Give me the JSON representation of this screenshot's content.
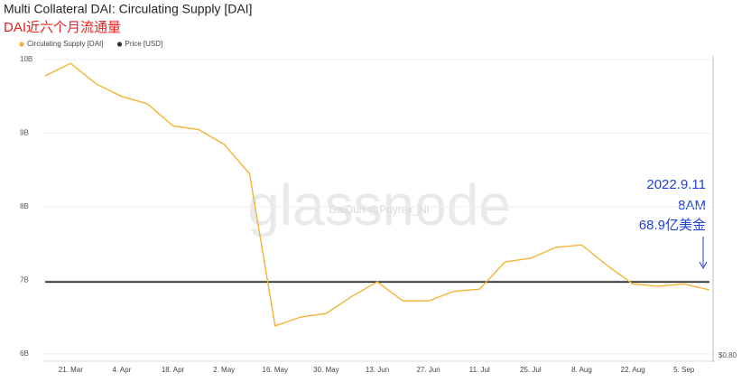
{
  "chart_data": {
    "type": "line",
    "title": "Multi Collateral DAI: Circulating Supply [DAI]",
    "subtitle": "DAI近六个月流通量",
    "categories": [
      null,
      "21. Mar",
      null,
      "4. Apr",
      null,
      "18. Apr",
      null,
      "2. May",
      null,
      "16. May",
      null,
      "30. May",
      null,
      "13. Jun",
      null,
      "27. Jun",
      null,
      "11. Jul",
      null,
      "25. Jul",
      null,
      "8. Aug",
      null,
      "22. Aug",
      null,
      "5. Sep",
      null
    ],
    "series": [
      {
        "name": "Circulating Supply [DAI]",
        "color": "#f5b335",
        "values": [
          9780000000,
          9950000000,
          9670000000,
          9500000000,
          9400000000,
          9100000000,
          9050000000,
          8850000000,
          8450000000,
          6380000000,
          6500000000,
          6550000000,
          6780000000,
          6980000000,
          6720000000,
          6720000000,
          6850000000,
          6880000000,
          7250000000,
          7300000000,
          7450000000,
          7480000000,
          7200000000,
          6950000000,
          6920000000,
          6950000000,
          6870000000
        ]
      },
      {
        "name": "Price [USD]",
        "color": "#333333",
        "axis": "y2",
        "values": [
          1.0,
          1.0,
          1.0,
          1.0,
          1.0,
          1.0,
          1.0,
          1.0,
          1.0,
          1.0,
          1.0,
          1.0,
          1.0,
          1.0,
          1.0,
          1.0,
          1.0,
          1.0,
          1.0,
          1.0,
          1.0,
          1.0,
          1.0,
          1.0,
          1.0,
          1.0,
          1.0
        ]
      }
    ],
    "ylim": [
      5900000000,
      10050000000
    ],
    "yticks": [
      {
        "value": 6000000000,
        "label": "6B"
      },
      {
        "value": 7000000000,
        "label": "7B"
      },
      {
        "value": 8000000000,
        "label": "8B"
      },
      {
        "value": 9000000000,
        "label": "9B"
      },
      {
        "value": 10000000000,
        "label": "10B"
      }
    ],
    "y2lim": [
      0.8,
      1.57
    ],
    "y2ticks": [
      {
        "value": 0.8,
        "label": "$0.80"
      }
    ],
    "grid": true,
    "legend": "top-left",
    "watermark": "glassnode",
    "watermark_sub": "DaiDun @Phyrex_Ni",
    "annotation": [
      "2022.9.11",
      "8AM",
      "68.9亿美金"
    ]
  }
}
